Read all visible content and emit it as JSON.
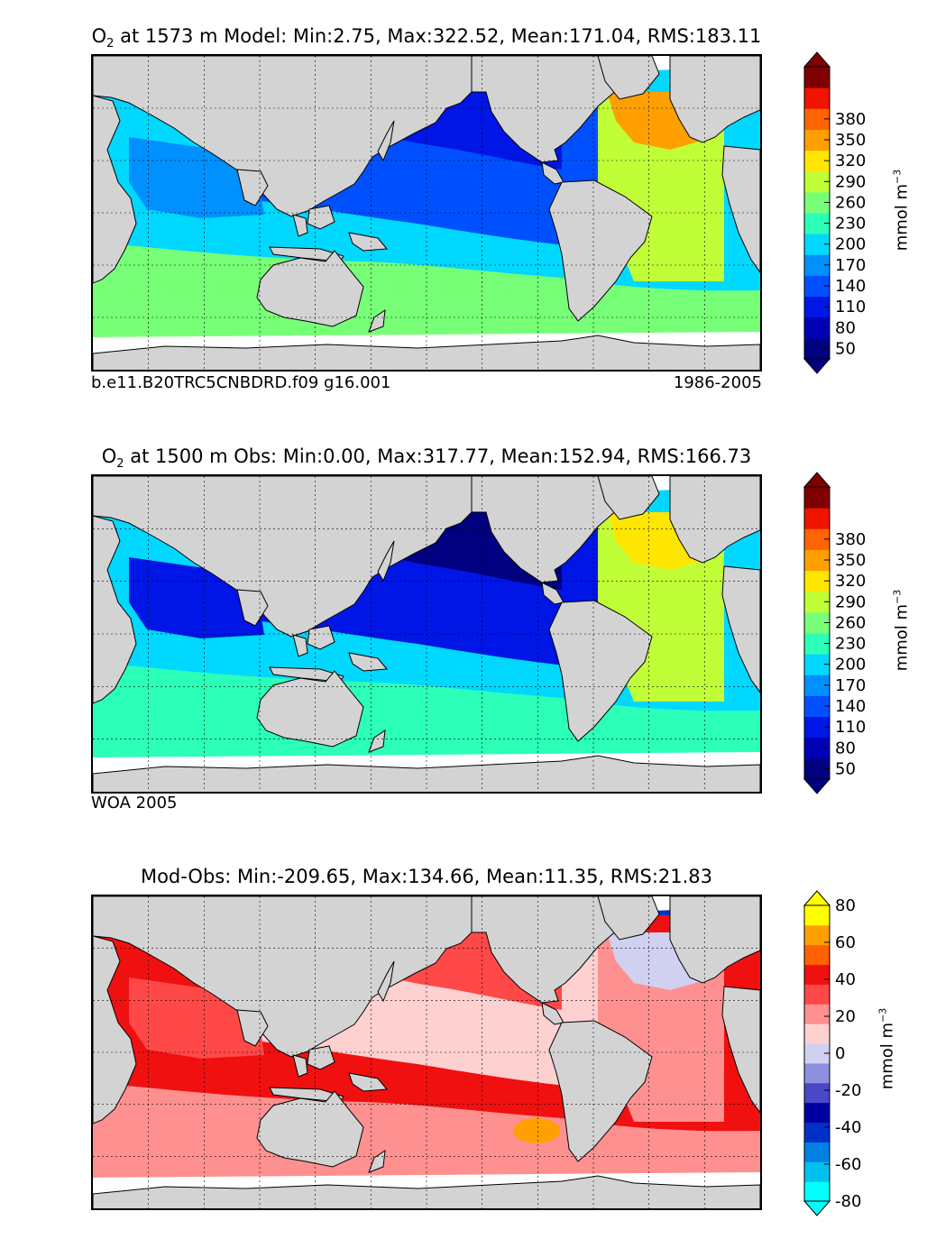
{
  "colors": {
    "land": "#d3d3d3",
    "ice": "#ffffff",
    "o2_scale": [
      "#000080",
      "#0000b4",
      "#0016e6",
      "#0050ff",
      "#0090ff",
      "#00d8ff",
      "#2cffb8",
      "#78ff78",
      "#c0ff38",
      "#ffe600",
      "#ffa000",
      "#ff6400",
      "#f01400",
      "#800000"
    ],
    "diff_scale": [
      "#00ffff",
      "#00c0f0",
      "#0080e0",
      "#0030c8",
      "#0000a0",
      "#4848c8",
      "#9090e0",
      "#d0d0f0",
      "#ffd0d0",
      "#ff9090",
      "#ff4848",
      "#f01010",
      "#ff6000",
      "#ffa000",
      "#ffff00"
    ]
  },
  "chart_data": [
    {
      "type": "heatmap",
      "title_prefix": "O",
      "title_sub": "2",
      "title_rest": " at 1573 m Model: Min:2.75, Max:322.52, Mean:171.04, RMS:183.11",
      "stats": {
        "min": 2.75,
        "max": 322.52,
        "mean": 171.04,
        "rms": 183.11
      },
      "depth": "1573 m",
      "left_caption": "b.e11.B20TRC5CNBDRD.f09 g16.001",
      "right_caption": "1986-2005",
      "colorbar": {
        "ticks": [
          50,
          80,
          110,
          140,
          170,
          200,
          230,
          260,
          290,
          320,
          350,
          380
        ],
        "label_base": "mmol m",
        "label_exp": "−3",
        "extend": "both"
      },
      "regions": {
        "north_pacific": "#0016e6",
        "central_pacific": "#0050ff",
        "indian_north": "#0090ff",
        "southern_band": "#00d8ff",
        "southern_ocean": "#78ff78",
        "north_atlantic": "#c0ff38",
        "labrador_sea": "#ffa000"
      }
    },
    {
      "type": "heatmap",
      "title_prefix": "O",
      "title_sub": "2",
      "title_rest": " at 1500 m Obs: Min:0.00, Max:317.77, Mean:152.94, RMS:166.73",
      "stats": {
        "min": 0.0,
        "max": 317.77,
        "mean": 152.94,
        "rms": 166.73
      },
      "depth": "1500 m",
      "left_caption": "WOA 2005",
      "right_caption": "",
      "colorbar": {
        "ticks": [
          50,
          80,
          110,
          140,
          170,
          200,
          230,
          260,
          290,
          320,
          350,
          380
        ],
        "label_base": "mmol m",
        "label_exp": "−3",
        "extend": "both"
      },
      "regions": {
        "north_pacific": "#000080",
        "central_pacific": "#0016e6",
        "indian_north": "#0016e6",
        "southern_band": "#00d8ff",
        "southern_ocean": "#2cffb8",
        "north_atlantic": "#c0ff38",
        "labrador_sea": "#ffe600"
      }
    },
    {
      "type": "heatmap",
      "title_prefix": "Mod-Obs",
      "title_sub": "",
      "title_rest": ": Min:-209.65, Max:134.66, Mean:11.35, RMS:21.83",
      "stats": {
        "min": -209.65,
        "max": 134.66,
        "mean": 11.35,
        "rms": 21.83
      },
      "left_caption": "",
      "right_caption": "",
      "colorbar": {
        "ticks": [
          -80,
          -60,
          -40,
          -20,
          0,
          20,
          40,
          60,
          80
        ],
        "label_base": "mmol m",
        "label_exp": "−3",
        "extend": "both"
      },
      "regions": {
        "north_pacific": "#ff4848",
        "central_pacific": "#ffd0d0",
        "indian_north": "#ff4848",
        "southern_band": "#f01010",
        "southern_ocean": "#ff9090",
        "north_atlantic": "#ff9090",
        "labrador_sea": "#d0d0f0",
        "arctic": "#0030c8",
        "hotspot": "#ffa000"
      }
    }
  ]
}
